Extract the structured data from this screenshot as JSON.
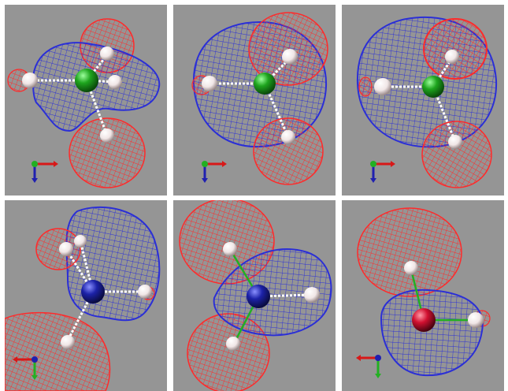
{
  "figure": {
    "background": "#ffffff",
    "panel_background": "#959595",
    "colors": {
      "positive_lobe": "#2b2fd6",
      "negative_lobe": "#ff2a2a",
      "carbon_atom": "#1ea51e",
      "nitrogen_atom": "#1c22a8",
      "oxygen_atom": "#d11030",
      "hydrogen_atom": "#f4eeee",
      "bond": "#ffffff"
    },
    "panels": [
      {
        "id": "p1",
        "row": 1,
        "col": 1,
        "central_atom": "carbon",
        "has_axis_triad": true
      },
      {
        "id": "p2",
        "row": 1,
        "col": 2,
        "central_atom": "carbon",
        "has_axis_triad": true
      },
      {
        "id": "p3",
        "row": 1,
        "col": 3,
        "central_atom": "carbon",
        "has_axis_triad": true
      },
      {
        "id": "p4",
        "row": 2,
        "col": 1,
        "central_atom": "nitrogen",
        "has_axis_triad": true
      },
      {
        "id": "p5",
        "row": 2,
        "col": 2,
        "central_atom": "nitrogen",
        "has_axis_triad": false
      },
      {
        "id": "p6",
        "row": 2,
        "col": 3,
        "central_atom": "oxygen",
        "has_axis_triad": true
      }
    ]
  }
}
